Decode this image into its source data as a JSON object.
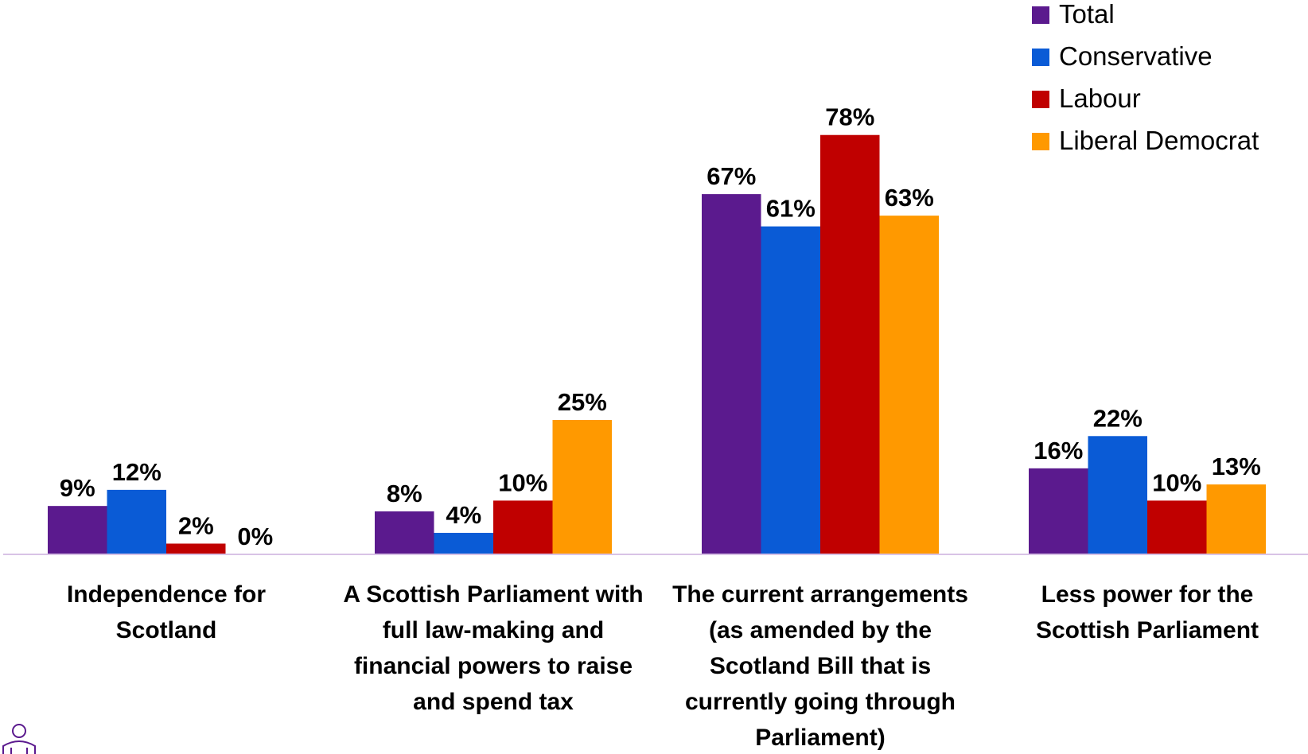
{
  "chart_data": {
    "type": "bar",
    "categories": [
      [
        "Independence for",
        "Scotland"
      ],
      [
        "A Scottish Parliament with",
        "full law-making and",
        "financial powers to raise",
        "and spend tax"
      ],
      [
        "The current arrangements",
        "(as amended by the",
        "Scotland Bill that is",
        "currently going through",
        "Parliament)"
      ],
      [
        "Less power for the",
        "Scottish Parliament"
      ]
    ],
    "series": [
      {
        "name": "Total",
        "color": "#5b1a8e",
        "values": [
          9,
          8,
          67,
          16
        ],
        "labels": [
          "9%",
          "8%",
          "67%",
          "16%"
        ]
      },
      {
        "name": "Conservative",
        "color": "#0a5bd6",
        "values": [
          12,
          4,
          61,
          22
        ],
        "labels": [
          "12%",
          "4%",
          "61%",
          "22%"
        ]
      },
      {
        "name": "Labour",
        "color": "#c00000",
        "values": [
          2,
          10,
          78,
          10
        ],
        "labels": [
          "2%",
          "10%",
          "78%",
          "10%"
        ]
      },
      {
        "name": "Liberal Democrat",
        "color": "#ff9900",
        "values": [
          0,
          25,
          63,
          13
        ],
        "labels": [
          "0%",
          "25%",
          "63%",
          "13%"
        ]
      }
    ],
    "ylim": [
      0,
      100
    ],
    "legend_position": "top-right",
    "axis_color": "#d8c3e6",
    "logo_icon": "person-at-desk-icon",
    "logo_color": "#5b1a8e"
  }
}
